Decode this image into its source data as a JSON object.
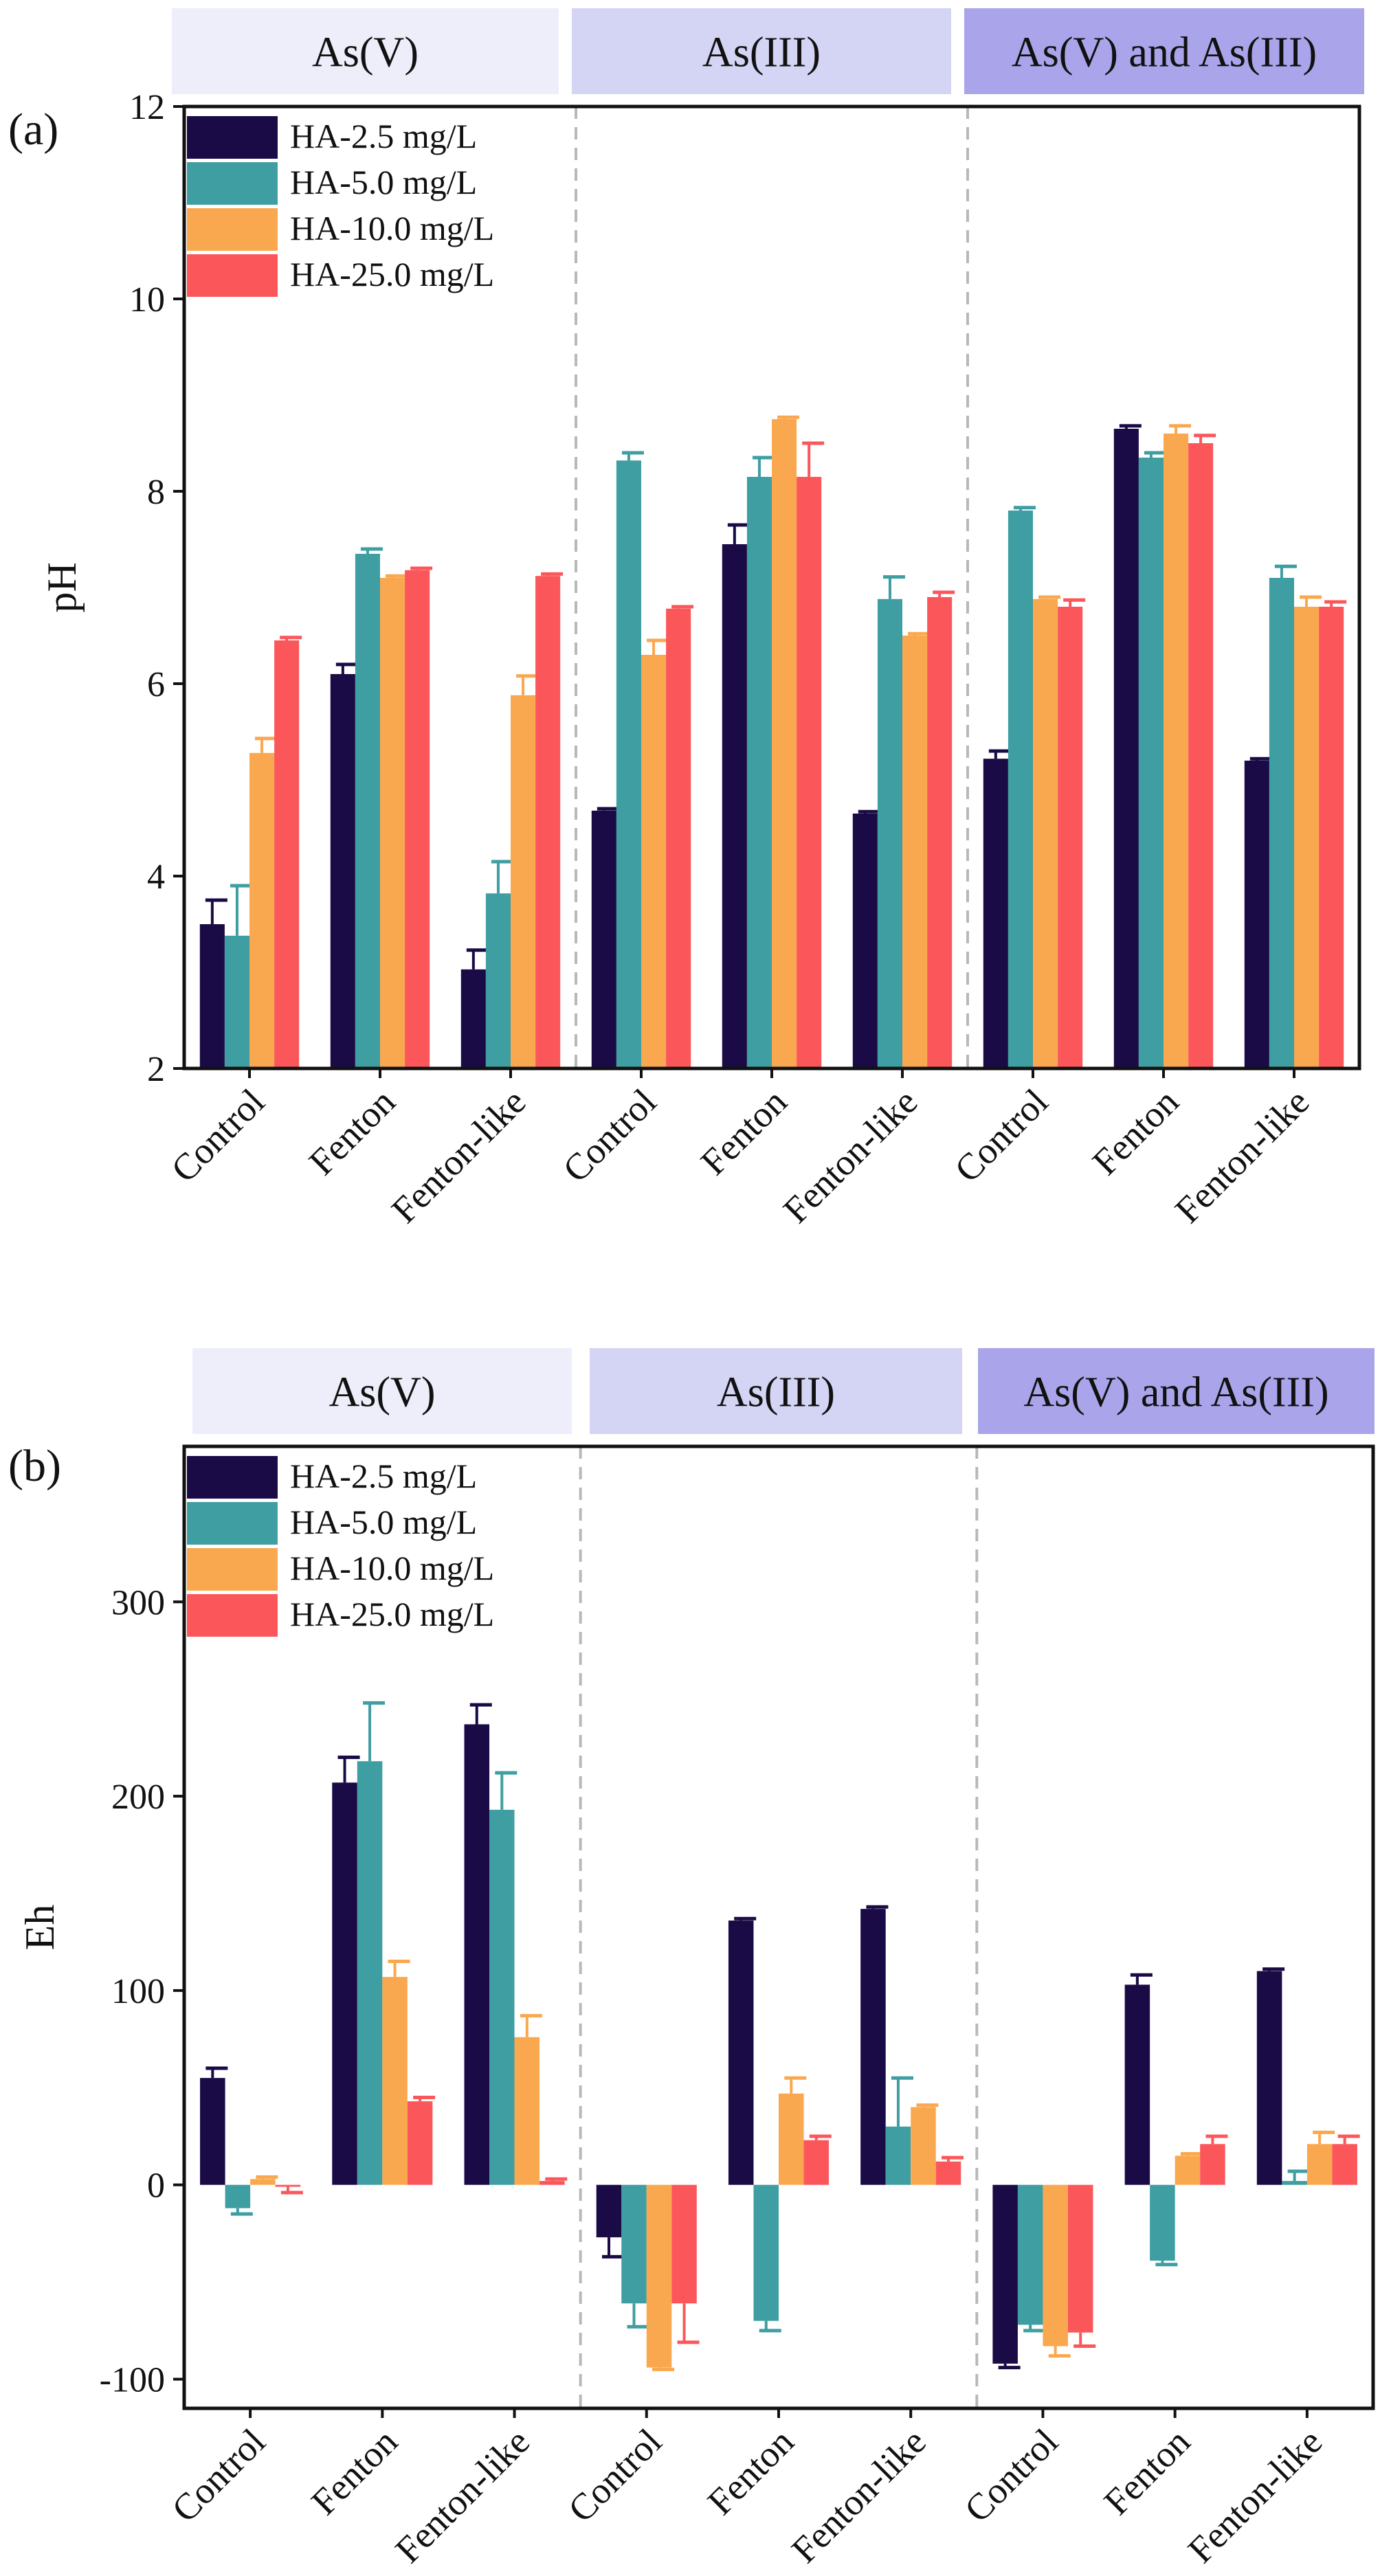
{
  "chart_data": [
    {
      "type": "bar",
      "panel_label": "(a)",
      "ylabel": "pH",
      "ylim": [
        2,
        12
      ],
      "yticks": [
        2,
        4,
        6,
        8,
        10,
        12
      ],
      "groups": [
        "As(V)",
        "As(III)",
        "As(V) and As(III)"
      ],
      "group_colors": [
        "#eeeefb",
        "#d4d4f4",
        "#aaa5ea"
      ],
      "categories": [
        "Control",
        "Fenton",
        "Fenton-like",
        "Control",
        "Fenton",
        "Fenton-like",
        "Control",
        "Fenton",
        "Fenton-like"
      ],
      "legend_position": "top-left",
      "series": [
        {
          "name": "HA-2.5 mg/L",
          "color": "#1a0a45",
          "values": [
            3.5,
            6.1,
            3.03,
            4.68,
            7.45,
            4.65,
            5.22,
            8.65,
            5.2
          ],
          "errors": [
            0.25,
            0.1,
            0.2,
            0.02,
            0.2,
            0.02,
            0.08,
            0.03,
            0.02
          ]
        },
        {
          "name": "HA-5.0 mg/L",
          "color": "#3e9ea2",
          "values": [
            3.38,
            7.35,
            3.82,
            8.32,
            8.15,
            6.88,
            7.8,
            8.35,
            7.1
          ],
          "errors": [
            0.52,
            0.05,
            0.33,
            0.08,
            0.2,
            0.23,
            0.03,
            0.05,
            0.12
          ]
        },
        {
          "name": "HA-10.0 mg/L",
          "color": "#faa850",
          "values": [
            5.28,
            7.1,
            5.88,
            6.3,
            8.75,
            6.5,
            6.88,
            8.6,
            6.8
          ],
          "errors": [
            0.15,
            0.02,
            0.2,
            0.15,
            0.02,
            0.02,
            0.02,
            0.08,
            0.1
          ]
        },
        {
          "name": "HA-25.0 mg/L",
          "color": "#fb575b",
          "values": [
            6.45,
            7.18,
            7.12,
            6.78,
            8.15,
            6.9,
            6.8,
            8.5,
            6.8
          ],
          "errors": [
            0.03,
            0.02,
            0.02,
            0.02,
            0.35,
            0.05,
            0.07,
            0.08,
            0.05
          ]
        }
      ]
    },
    {
      "type": "bar",
      "panel_label": "(b)",
      "ylabel": "Eh",
      "ylim": [
        -115,
        380
      ],
      "yticks": [
        -100,
        0,
        100,
        200,
        300
      ],
      "groups": [
        "As(V)",
        "As(III)",
        "As(V) and As(III)"
      ],
      "group_colors": [
        "#eeeefb",
        "#d4d4f4",
        "#aaa5ea"
      ],
      "categories": [
        "Control",
        "Fenton",
        "Fenton-like",
        "Control",
        "Fenton",
        "Fenton-like",
        "Control",
        "Fenton",
        "Fenton-like"
      ],
      "legend_position": "top-left",
      "series": [
        {
          "name": "HA-2.5 mg/L",
          "color": "#1a0a45",
          "values": [
            55,
            207,
            237,
            -27,
            136,
            142,
            -92,
            103,
            110
          ],
          "errors": [
            5,
            13,
            10,
            10,
            1,
            1,
            2,
            5,
            1
          ]
        },
        {
          "name": "HA-5.0 mg/L",
          "color": "#3e9ea2",
          "values": [
            -12,
            218,
            193,
            -61,
            -70,
            30,
            -72,
            -39,
            2
          ],
          "errors": [
            3,
            30,
            19,
            12,
            5,
            25,
            3,
            2,
            5
          ]
        },
        {
          "name": "HA-10.0 mg/L",
          "color": "#faa850",
          "values": [
            3,
            107,
            76,
            -94,
            47,
            40,
            -83,
            15,
            21
          ],
          "errors": [
            1,
            8,
            11,
            1,
            8,
            1,
            5,
            1,
            6
          ]
        },
        {
          "name": "HA-25.0 mg/L",
          "color": "#fb575b",
          "values": [
            -1,
            43,
            2,
            -61,
            23,
            12,
            -76,
            21,
            21
          ],
          "errors": [
            3,
            2,
            1,
            20,
            2,
            2,
            7,
            4,
            4
          ]
        }
      ]
    }
  ]
}
